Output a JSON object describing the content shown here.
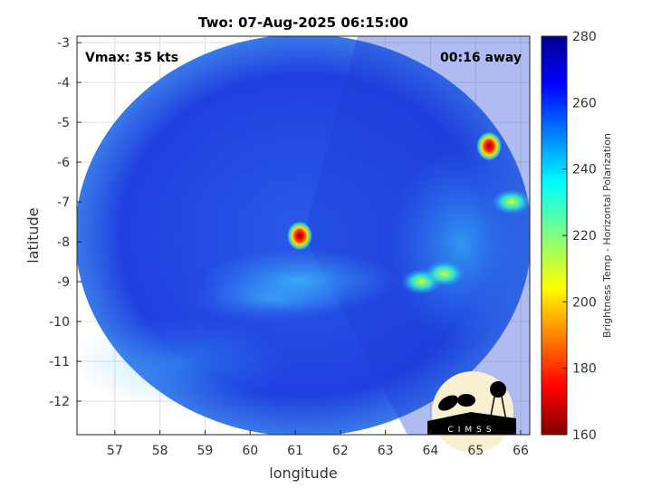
{
  "chart_data": {
    "type": "heatmap",
    "title": "Two: 07-Aug-2025 06:15:00",
    "xlabel": "longitude",
    "ylabel": "latitude",
    "xlim": [
      56.16,
      66.2
    ],
    "ylim": [
      -12.84,
      -2.84
    ],
    "xticks": [
      57,
      58,
      59,
      60,
      61,
      62,
      63,
      64,
      65,
      66
    ],
    "yticks": [
      -3,
      -4,
      -5,
      -6,
      -7,
      -8,
      -9,
      -10,
      -11,
      -12
    ],
    "grid": true,
    "colorbar": {
      "label": "Brightness Temp - Horizontal Polarization",
      "range": [
        160,
        280
      ],
      "ticks": [
        160,
        180,
        200,
        220,
        240,
        260,
        280
      ],
      "colormap": "jet",
      "placement": "right"
    },
    "annotations": {
      "vmax": "Vmax: 35 kts",
      "away": "00:16 away"
    },
    "features": [
      {
        "lon": 61.1,
        "lat": -7.85,
        "value": 175
      },
      {
        "lon": 65.3,
        "lat": -5.6,
        "value": 195
      },
      {
        "lon": 65.8,
        "lat": -7.0,
        "value": 215
      },
      {
        "lon": 63.8,
        "lat": -9.0,
        "value": 220
      },
      {
        "lon": 64.3,
        "lat": -8.8,
        "value": 225
      }
    ]
  },
  "logo": {
    "text": "CIMSS"
  }
}
